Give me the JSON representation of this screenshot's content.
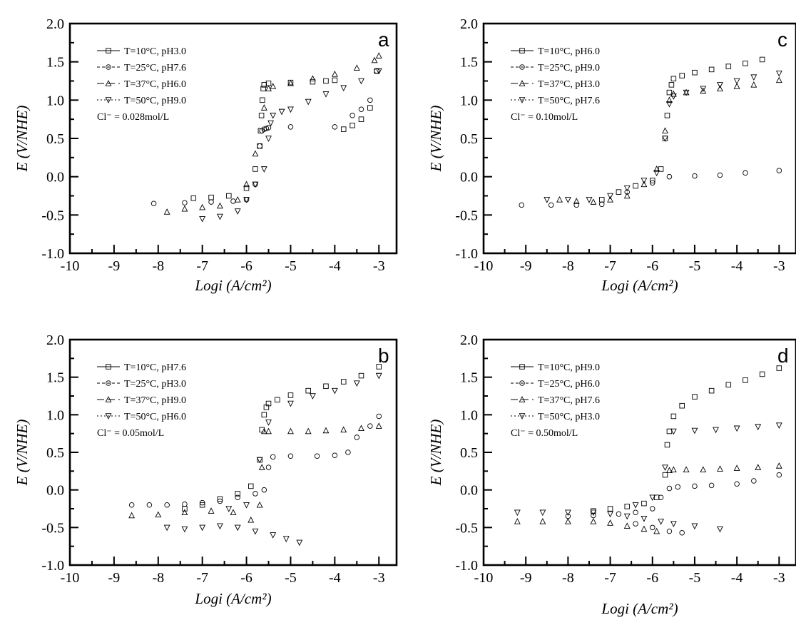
{
  "chart_data": [
    {
      "type": "scatter",
      "panel": "a",
      "xlabel": "Logi (A/cm²)",
      "ylabel": "E (V/NHE)",
      "xlim": [
        -10,
        -2.6
      ],
      "ylim": [
        -1.0,
        2.0
      ],
      "xticks": [
        "-10",
        "-9",
        "-8",
        "-7",
        "-6",
        "-5",
        "-4",
        "-3"
      ],
      "yticks": [
        "-1.0",
        "-0.5",
        "0.0",
        "0.5",
        "1.0",
        "1.5",
        "2.0"
      ],
      "legend_placement": "top-left",
      "annotation": "Cl⁻ = 0.028mol/L",
      "series": [
        {
          "name": "T=10°C, pH3.0",
          "marker": "square",
          "x": [
            -7.2,
            -6.8,
            -6.4,
            -6.0,
            -5.8,
            -5.7,
            -5.68,
            -5.66,
            -5.64,
            -5.62,
            -5.6,
            -5.5,
            -5.0,
            -4.5,
            -4.2,
            -4.0,
            -3.8,
            -3.6,
            -3.4,
            -3.2,
            -3.05
          ],
          "y": [
            -0.28,
            -0.27,
            -0.25,
            -0.15,
            0.1,
            0.4,
            0.6,
            0.8,
            1.0,
            1.15,
            1.2,
            1.22,
            1.23,
            1.24,
            1.25,
            1.26,
            0.62,
            0.67,
            0.75,
            0.9,
            1.38
          ]
        },
        {
          "name": "T=25°C, pH7.6",
          "marker": "circle",
          "x": [
            -8.1,
            -7.4,
            -6.8,
            -6.3,
            -6.0,
            -5.8,
            -5.7,
            -5.65,
            -5.6,
            -5.55,
            -5.5,
            -5.0,
            -4.0,
            -3.6,
            -3.4,
            -3.2,
            -3.05
          ],
          "y": [
            -0.35,
            -0.34,
            -0.33,
            -0.32,
            -0.3,
            -0.1,
            0.4,
            0.6,
            0.62,
            0.63,
            0.64,
            0.65,
            0.65,
            0.8,
            0.88,
            1.0,
            1.38
          ]
        },
        {
          "name": "T=37°C, pH6.0",
          "marker": "triangle-up",
          "x": [
            -7.8,
            -7.4,
            -7.0,
            -6.6,
            -6.2,
            -6.0,
            -5.8,
            -5.6,
            -5.5,
            -5.4,
            -5.0,
            -4.5,
            -4.0,
            -3.5,
            -3.1,
            -3.0
          ],
          "y": [
            -0.46,
            -0.42,
            -0.4,
            -0.38,
            -0.3,
            -0.1,
            0.3,
            0.9,
            1.15,
            1.18,
            1.22,
            1.28,
            1.34,
            1.42,
            1.52,
            1.58
          ]
        },
        {
          "name": "T=50°C, pH9.0",
          "marker": "triangle-down",
          "x": [
            -7.0,
            -6.6,
            -6.2,
            -6.0,
            -5.8,
            -5.6,
            -5.5,
            -5.45,
            -5.4,
            -5.2,
            -5.0,
            -4.6,
            -4.2,
            -3.8,
            -3.4,
            -3.0
          ],
          "y": [
            -0.55,
            -0.52,
            -0.45,
            -0.3,
            -0.1,
            0.1,
            0.5,
            0.7,
            0.8,
            0.85,
            0.88,
            0.98,
            1.08,
            1.16,
            1.25,
            1.38
          ]
        }
      ]
    },
    {
      "type": "scatter",
      "panel": "c",
      "xlabel": "Logi (A/cm²)",
      "ylabel": "E (V/NHE)",
      "xlim": [
        -10,
        -2.6
      ],
      "ylim": [
        -1.0,
        2.0
      ],
      "xticks": [
        "-10",
        "-9",
        "-8",
        "-7",
        "-6",
        "-5",
        "-4",
        "-3"
      ],
      "yticks": [
        "-1.0",
        "-0.5",
        "0.0",
        "0.5",
        "1.0",
        "1.5",
        "2.0"
      ],
      "legend_placement": "top-left",
      "annotation": "Cl⁻ = 0.10mol/L",
      "series": [
        {
          "name": "T=10°C, pH6.0",
          "marker": "square",
          "x": [
            -7.2,
            -6.8,
            -6.4,
            -6.0,
            -5.8,
            -5.7,
            -5.65,
            -5.6,
            -5.55,
            -5.5,
            -5.3,
            -5.0,
            -4.6,
            -4.2,
            -3.8,
            -3.4
          ],
          "y": [
            -0.3,
            -0.2,
            -0.12,
            -0.05,
            0.1,
            0.5,
            0.8,
            1.1,
            1.2,
            1.28,
            1.32,
            1.36,
            1.4,
            1.44,
            1.48,
            1.53
          ]
        },
        {
          "name": "T=25°C, pH9.0",
          "marker": "circle",
          "x": [
            -9.1,
            -8.4,
            -7.8,
            -7.2,
            -6.6,
            -6.0,
            -5.6,
            -5.0,
            -4.4,
            -3.8,
            -3.0
          ],
          "y": [
            -0.37,
            -0.37,
            -0.37,
            -0.36,
            -0.2,
            -0.08,
            0.0,
            0.01,
            0.02,
            0.05,
            0.08
          ]
        },
        {
          "name": "T=37°C, pH3.0",
          "marker": "triangle-up",
          "x": [
            -8.2,
            -7.8,
            -7.4,
            -7.0,
            -6.6,
            -6.2,
            -5.9,
            -5.7,
            -5.6,
            -5.5,
            -5.2,
            -4.8,
            -4.4,
            -4.0,
            -3.6,
            -3.0
          ],
          "y": [
            -0.3,
            -0.32,
            -0.33,
            -0.3,
            -0.25,
            -0.1,
            0.1,
            0.6,
            1.0,
            1.08,
            1.1,
            1.12,
            1.15,
            1.18,
            1.2,
            1.26
          ]
        },
        {
          "name": "T=50°C, pH7.6",
          "marker": "triangle-down",
          "x": [
            -8.5,
            -8.0,
            -7.5,
            -7.0,
            -6.6,
            -6.2,
            -5.9,
            -5.7,
            -5.6,
            -5.5,
            -5.2,
            -4.8,
            -4.4,
            -4.0,
            -3.6,
            -3.0
          ],
          "y": [
            -0.3,
            -0.3,
            -0.3,
            -0.25,
            -0.15,
            -0.05,
            0.05,
            0.5,
            0.95,
            1.05,
            1.1,
            1.15,
            1.2,
            1.25,
            1.3,
            1.35
          ]
        }
      ]
    },
    {
      "type": "scatter",
      "panel": "b",
      "xlabel": "Logi  (A/cm²)",
      "ylabel": "E (V/NHE)",
      "xlim": [
        -10,
        -2.6
      ],
      "ylim": [
        -1.0,
        2.0
      ],
      "xticks": [
        "-10",
        "-9",
        "-8",
        "-7",
        "-6",
        "-5",
        "-4",
        "-3"
      ],
      "yticks": [
        "-1.0",
        "-0.5",
        "0.0",
        "0.5",
        "1.0",
        "1.5",
        "2.0"
      ],
      "legend_placement": "top-left",
      "annotation": "Cl⁻ = 0.05mol/L",
      "series": [
        {
          "name": "T=10°C, pH7.6",
          "marker": "square",
          "x": [
            -7.4,
            -7.0,
            -6.6,
            -6.2,
            -5.9,
            -5.7,
            -5.65,
            -5.6,
            -5.55,
            -5.5,
            -5.3,
            -5.0,
            -4.6,
            -4.2,
            -3.8,
            -3.4,
            -3.0
          ],
          "y": [
            -0.25,
            -0.2,
            -0.12,
            -0.05,
            0.05,
            0.4,
            0.8,
            1.0,
            1.1,
            1.15,
            1.2,
            1.26,
            1.32,
            1.38,
            1.44,
            1.52,
            1.64
          ]
        },
        {
          "name": "T=25°C, pH3.0",
          "marker": "circle",
          "x": [
            -8.6,
            -8.2,
            -7.8,
            -7.4,
            -7.0,
            -6.6,
            -6.2,
            -5.8,
            -5.6,
            -5.5,
            -5.4,
            -5.0,
            -4.4,
            -4.0,
            -3.7,
            -3.5,
            -3.2,
            -3.0
          ],
          "y": [
            -0.2,
            -0.2,
            -0.2,
            -0.19,
            -0.17,
            -0.15,
            -0.1,
            -0.05,
            0.0,
            0.3,
            0.44,
            0.45,
            0.45,
            0.46,
            0.5,
            0.7,
            0.85,
            0.98
          ]
        },
        {
          "name": "T=37°C, pH9.0",
          "marker": "triangle-up",
          "x": [
            -8.6,
            -8.0,
            -7.4,
            -6.8,
            -6.3,
            -5.9,
            -5.7,
            -5.65,
            -5.6,
            -5.5,
            -5.0,
            -4.6,
            -4.2,
            -3.8,
            -3.4,
            -3.0
          ],
          "y": [
            -0.34,
            -0.33,
            -0.3,
            -0.28,
            -0.3,
            -0.4,
            -0.2,
            0.3,
            0.78,
            0.78,
            0.78,
            0.78,
            0.79,
            0.8,
            0.82,
            0.85
          ]
        },
        {
          "name": "T=50°C, pH6.0",
          "marker": "triangle-down",
          "x": [
            -7.8,
            -7.4,
            -7.0,
            -6.6,
            -6.2,
            -5.8,
            -5.4,
            -5.1,
            -4.8,
            -6.4,
            -6.0,
            -5.7,
            -5.5,
            -5.0,
            -4.5,
            -4.0,
            -3.5,
            -3.0
          ],
          "y": [
            -0.5,
            -0.52,
            -0.5,
            -0.48,
            -0.5,
            -0.55,
            -0.6,
            -0.65,
            -0.7,
            -0.25,
            -0.2,
            0.4,
            0.9,
            1.15,
            1.25,
            1.32,
            1.42,
            1.52
          ]
        }
      ]
    },
    {
      "type": "scatter",
      "panel": "d",
      "xlabel": "Logi (A/cm²)",
      "ylabel": "E (V/NHE)",
      "xlim": [
        -10,
        -2.6
      ],
      "ylim": [
        -1.0,
        2.0
      ],
      "xticks": [
        "-10",
        "-9",
        "-8",
        "-7",
        "-6",
        "-5",
        "-4",
        "-3"
      ],
      "yticks": [
        "-1.0",
        "-0.5",
        "0.0",
        "0.5",
        "1.0",
        "1.5",
        "2.0"
      ],
      "legend_placement": "top-left",
      "annotation": "Cl⁻ = 0.50mol/L",
      "series": [
        {
          "name": "T=10°C, pH9.0",
          "marker": "square",
          "x": [
            -7.4,
            -7.0,
            -6.6,
            -6.2,
            -5.9,
            -5.7,
            -5.65,
            -5.6,
            -5.5,
            -5.3,
            -5.0,
            -4.6,
            -4.2,
            -3.8,
            -3.4,
            -3.0
          ],
          "y": [
            -0.28,
            -0.25,
            -0.22,
            -0.18,
            -0.1,
            0.2,
            0.6,
            0.78,
            0.98,
            1.12,
            1.24,
            1.32,
            1.4,
            1.46,
            1.54,
            1.62
          ]
        },
        {
          "name": "T=25°C, pH6.0",
          "marker": "circle",
          "x": [
            -8.0,
            -7.4,
            -6.8,
            -6.4,
            -6.0,
            -5.8,
            -5.6,
            -5.4,
            -5.0,
            -4.6,
            -4.0,
            -3.6,
            -3.0,
            -6.4,
            -6.0,
            -5.6,
            -5.3
          ],
          "y": [
            -0.35,
            -0.34,
            -0.32,
            -0.3,
            -0.25,
            -0.1,
            0.02,
            0.04,
            0.05,
            0.06,
            0.08,
            0.12,
            0.2,
            -0.45,
            -0.5,
            -0.55,
            -0.57
          ]
        },
        {
          "name": "T=37°C, pH7.6",
          "marker": "triangle-up",
          "x": [
            -9.2,
            -8.6,
            -8.0,
            -7.4,
            -7.0,
            -6.6,
            -6.2,
            -5.9,
            -5.6,
            -5.5,
            -5.2,
            -4.8,
            -4.4,
            -4.0,
            -3.5,
            -3.0
          ],
          "y": [
            -0.42,
            -0.42,
            -0.42,
            -0.42,
            -0.44,
            -0.48,
            -0.52,
            -0.55,
            0.26,
            0.27,
            0.27,
            0.27,
            0.28,
            0.29,
            0.3,
            0.32
          ]
        },
        {
          "name": "T=50°C, pH3.0",
          "marker": "triangle-down",
          "x": [
            -9.2,
            -8.6,
            -8.0,
            -7.4,
            -7.0,
            -6.6,
            -6.2,
            -5.8,
            -5.5,
            -5.0,
            -4.4,
            -6.4,
            -6.0,
            -5.7,
            -5.5,
            -5.0,
            -4.5,
            -4.0,
            -3.5,
            -3.0
          ],
          "y": [
            -0.3,
            -0.3,
            -0.3,
            -0.3,
            -0.32,
            -0.35,
            -0.38,
            -0.42,
            -0.45,
            -0.48,
            -0.52,
            -0.2,
            -0.1,
            0.3,
            0.78,
            0.79,
            0.8,
            0.82,
            0.84,
            0.86
          ]
        }
      ]
    }
  ]
}
